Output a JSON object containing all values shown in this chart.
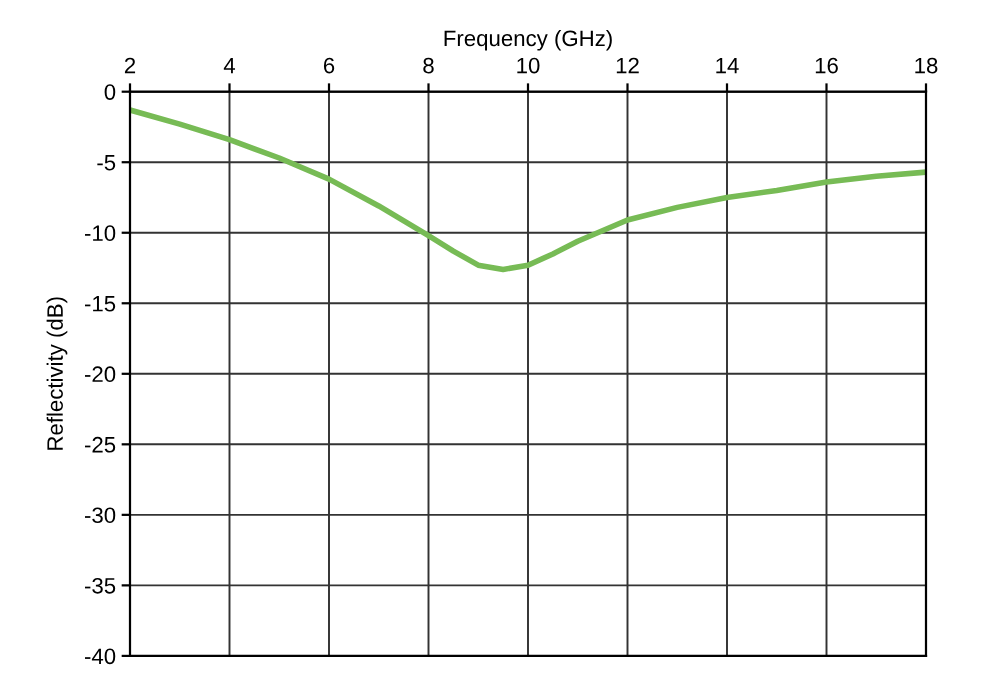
{
  "chart_data": {
    "type": "line",
    "xlabel": "Frequency (GHz)",
    "ylabel": "Reflectivity (dB)",
    "x": [
      2,
      3,
      4,
      5,
      6,
      7,
      8,
      8.5,
      9,
      9.5,
      10,
      10.5,
      11,
      12,
      13,
      14,
      15,
      16,
      17,
      18
    ],
    "series": [
      {
        "color": "#77bb55",
        "values": [
          -1.3,
          -2.3,
          -3.4,
          -4.7,
          -6.2,
          -8.1,
          -10.2,
          -11.3,
          -12.3,
          -12.6,
          -12.3,
          -11.5,
          -10.6,
          -9.1,
          -8.2,
          -7.5,
          -7.0,
          -6.4,
          -6.0,
          -5.7
        ]
      }
    ],
    "xlim": [
      2,
      18
    ],
    "xticks": [
      2,
      4,
      6,
      8,
      10,
      12,
      14,
      16,
      18
    ],
    "ylim": [
      -40,
      0
    ],
    "yticks": [
      0,
      -5,
      -10,
      -15,
      -20,
      -25,
      -30,
      -35,
      -40
    ],
    "grid": true
  }
}
